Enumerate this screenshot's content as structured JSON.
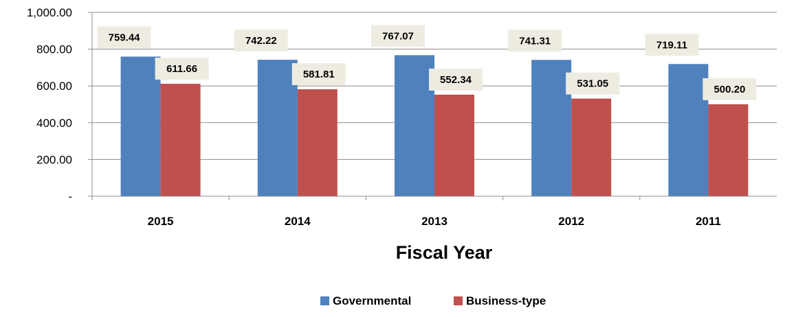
{
  "chart_data": {
    "type": "bar",
    "title": "",
    "xlabel": "Fiscal Year",
    "ylabel": "",
    "categories": [
      "2015",
      "2014",
      "2013",
      "2012",
      "2011"
    ],
    "series": [
      {
        "name": "Governmental",
        "values": [
          759.44,
          742.22,
          767.07,
          741.31,
          719.11
        ],
        "labels": [
          "759.44",
          "742.22",
          "767.07",
          "741.31",
          "719.11"
        ],
        "color": "#4F81BD"
      },
      {
        "name": "Business-type",
        "values": [
          611.66,
          581.81,
          552.34,
          531.05,
          500.2
        ],
        "labels": [
          "611.66",
          "581.81",
          "552.34",
          "531.05",
          "500.20"
        ],
        "color": "#C0504D"
      }
    ],
    "ylim": [
      0,
      1000
    ],
    "yticks": [
      0,
      200,
      400,
      600,
      800,
      1000
    ],
    "ytick_labels": [
      "-",
      "200.00",
      "400.00",
      "600.00",
      "800.00",
      "1,000.00"
    ],
    "grid": true,
    "legend": "bottom",
    "label_box_color": "#EEECE1"
  }
}
